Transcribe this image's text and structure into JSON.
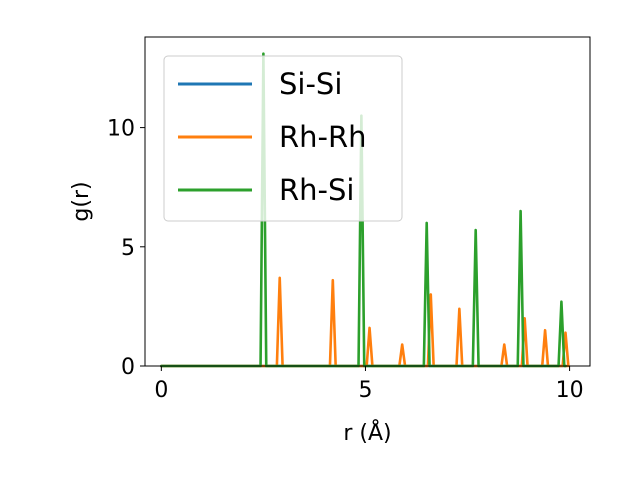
{
  "chart_data": {
    "type": "line",
    "title": "",
    "xlabel": "r (Å)",
    "ylabel": "g(r)",
    "xlim": [
      -0.4,
      10.5
    ],
    "ylim": [
      0,
      13.8
    ],
    "xticks": [
      0,
      5,
      10
    ],
    "yticks": [
      0,
      5,
      10
    ],
    "grid": false,
    "legend_position": "upper-left",
    "series": [
      {
        "name": "Si-Si",
        "color": "#1f77b4",
        "peaks": []
      },
      {
        "name": "Rh-Rh",
        "color": "#ff7f0e",
        "peaks": [
          {
            "r": 2.9,
            "g": 3.7
          },
          {
            "r": 4.2,
            "g": 3.6
          },
          {
            "r": 5.1,
            "g": 1.6
          },
          {
            "r": 5.9,
            "g": 0.9
          },
          {
            "r": 6.6,
            "g": 3.0
          },
          {
            "r": 7.3,
            "g": 2.4
          },
          {
            "r": 8.4,
            "g": 0.9
          },
          {
            "r": 8.9,
            "g": 2.0
          },
          {
            "r": 9.4,
            "g": 1.5
          },
          {
            "r": 9.9,
            "g": 1.4
          }
        ]
      },
      {
        "name": "Rh-Si",
        "color": "#2ca02c",
        "peaks": [
          {
            "r": 2.5,
            "g": 13.1
          },
          {
            "r": 4.9,
            "g": 10.5
          },
          {
            "r": 6.5,
            "g": 6.0
          },
          {
            "r": 7.7,
            "g": 5.7
          },
          {
            "r": 8.8,
            "g": 6.5
          },
          {
            "r": 9.8,
            "g": 2.7
          }
        ]
      }
    ]
  }
}
